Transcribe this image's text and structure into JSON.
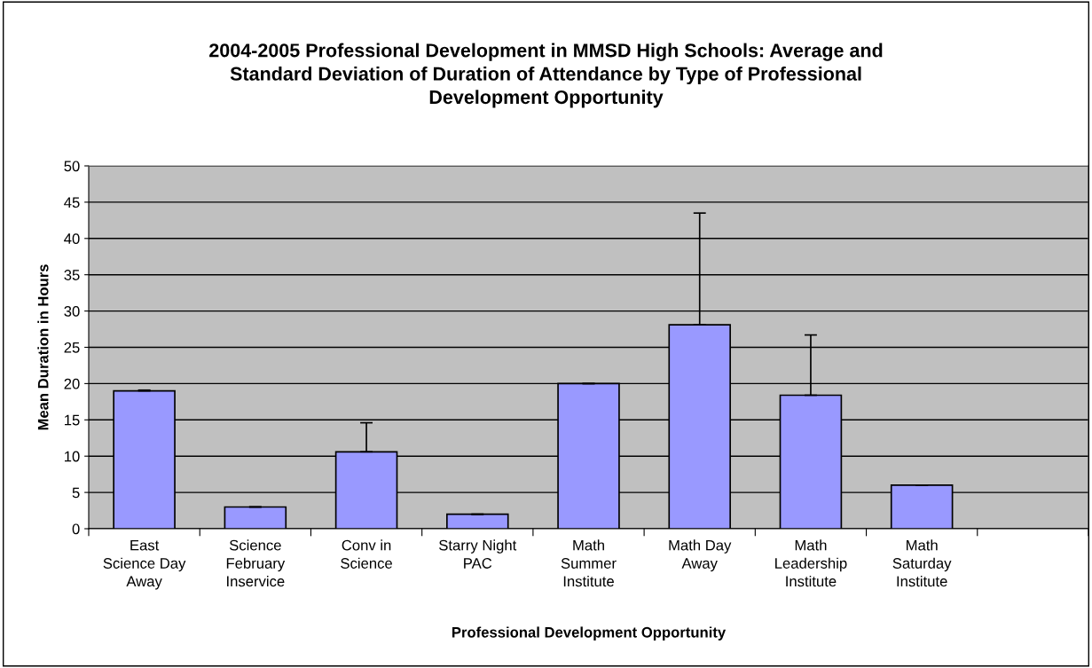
{
  "chart_data": {
    "type": "bar",
    "title": "2004-2005 Professional Development in MMSD High Schools: Average and\nStandard Deviation of Duration of Attendance by Type of Professional\nDevelopment Opportunity",
    "xlabel": "Professional Development Opportunity",
    "ylabel": "Mean Duration in Hours",
    "categories": [
      "East\nScience Day\nAway",
      "Science\nFebruary\nInservice",
      "Conv in\nScience",
      "Starry Night\nPAC",
      "Math\nSummer\nInstitute",
      "Math Day\nAway",
      "Math\nLeadership\nInstitute",
      "Math\nSaturday\nInstitute",
      null
    ],
    "values": [
      19.0,
      3.0,
      10.6,
      2.0,
      20.0,
      28.1,
      18.4,
      6.0,
      null
    ],
    "errors": [
      0.1,
      0,
      4.0,
      0,
      0,
      15.4,
      8.3,
      0,
      null
    ],
    "color": "#9999ff",
    "ylim": [
      0,
      50
    ],
    "yticks": [
      0,
      5,
      10,
      15,
      20,
      25,
      30,
      35,
      40,
      45,
      50
    ],
    "grid": "y"
  }
}
